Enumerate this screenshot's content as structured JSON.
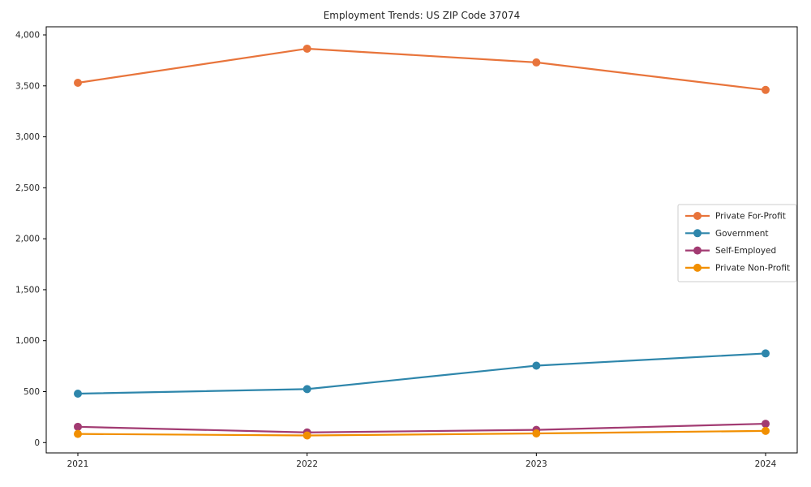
{
  "chart_data": {
    "type": "line",
    "title": "Employment Trends: US ZIP Code 37074",
    "xlabel": "",
    "ylabel": "",
    "x": [
      2021,
      2022,
      2023,
      2024
    ],
    "x_tick_labels": [
      "2021",
      "2022",
      "2023",
      "2024"
    ],
    "ylim": [
      0,
      4000
    ],
    "ytick_interval": 500,
    "y_tick_labels": [
      "0",
      "500",
      "1,000",
      "1,500",
      "2,000",
      "2,500",
      "3,000",
      "3,500",
      "4,000"
    ],
    "grid": false,
    "legend_position": "center right",
    "marker": "circle",
    "background_color": "#ffffff",
    "spine_color": "#000000",
    "series": [
      {
        "name": "Private For-Profit",
        "color": "#E8743B",
        "values": [
          3530,
          3865,
          3730,
          3460
        ]
      },
      {
        "name": "Government",
        "color": "#2E86AB",
        "values": [
          480,
          525,
          755,
          875
        ]
      },
      {
        "name": "Self-Employed",
        "color": "#A23B72",
        "values": [
          155,
          100,
          125,
          185
        ]
      },
      {
        "name": "Private Non-Profit",
        "color": "#F18F01",
        "values": [
          85,
          70,
          90,
          115
        ]
      }
    ]
  }
}
